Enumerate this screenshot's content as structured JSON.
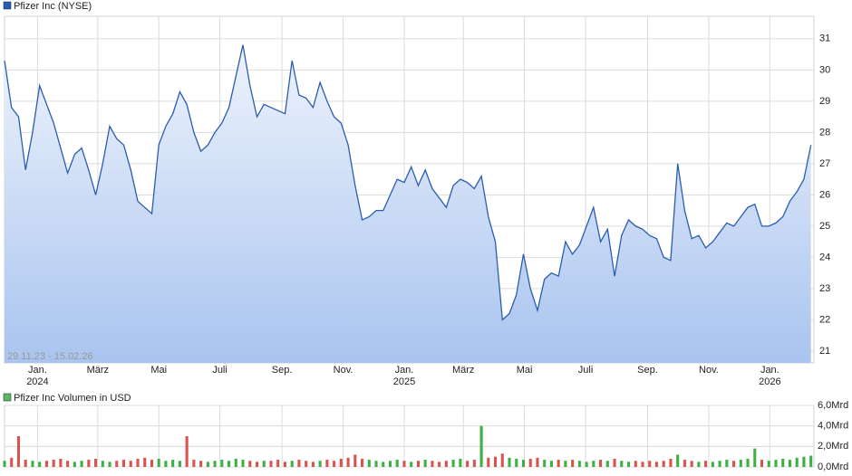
{
  "chart_data": [
    {
      "type": "line",
      "title": "Pfizer Inc (NYSE)",
      "range_label": "29.11.23 - 15.02.26",
      "xlim": [
        0,
        115.43
      ],
      "ylim": [
        20.62,
        31.72
      ],
      "yticks": [
        21,
        22,
        23,
        24,
        25,
        26,
        27,
        28,
        29,
        30,
        31
      ],
      "xticks": [
        {
          "value": 4.71,
          "label": "Jan.",
          "year": "2024"
        },
        {
          "value": 13.29,
          "label": "März"
        },
        {
          "value": 22.0,
          "label": "Mai"
        },
        {
          "value": 30.71,
          "label": "Juli"
        },
        {
          "value": 39.57,
          "label": "Sep."
        },
        {
          "value": 48.29,
          "label": "Nov."
        },
        {
          "value": 57.0,
          "label": "Jan.",
          "year": "2025"
        },
        {
          "value": 65.43,
          "label": "März"
        },
        {
          "value": 74.14,
          "label": "Mai"
        },
        {
          "value": 82.86,
          "label": "Juli"
        },
        {
          "value": 91.71,
          "label": "Sep."
        },
        {
          "value": 100.43,
          "label": "Nov."
        },
        {
          "value": 109.14,
          "label": "Jan.",
          "year": "2026"
        }
      ],
      "grid": true,
      "series": [
        {
          "name": "Pfizer Inc (NYSE)",
          "color": "#2a5db0",
          "values": [
            30.3,
            28.8,
            28.5,
            26.8,
            28.0,
            29.5,
            28.9,
            28.3,
            27.5,
            26.7,
            27.3,
            27.5,
            26.8,
            26.0,
            27.0,
            28.2,
            27.8,
            27.6,
            26.8,
            25.8,
            25.6,
            25.4,
            27.6,
            28.2,
            28.6,
            29.3,
            28.9,
            28.0,
            27.4,
            27.6,
            28.0,
            28.3,
            28.8,
            29.8,
            30.8,
            29.5,
            28.5,
            28.9,
            28.8,
            28.7,
            28.6,
            30.3,
            29.2,
            29.1,
            28.8,
            29.6,
            29.0,
            28.5,
            28.3,
            27.6,
            26.3,
            25.2,
            25.3,
            25.5,
            25.5,
            26.0,
            26.5,
            26.4,
            26.9,
            26.3,
            26.8,
            26.2,
            25.9,
            25.6,
            26.3,
            26.5,
            26.4,
            26.2,
            26.6,
            25.3,
            24.5,
            22.0,
            22.2,
            22.8,
            24.1,
            23.0,
            22.3,
            23.3,
            23.5,
            23.4,
            24.5,
            24.1,
            24.4,
            25.0,
            25.6,
            24.5,
            24.9,
            23.4,
            24.7,
            25.2,
            25.0,
            24.9,
            24.7,
            24.6,
            24.0,
            23.9,
            27.0,
            25.5,
            24.6,
            24.7,
            24.3,
            24.5,
            24.8,
            25.1,
            25.0,
            25.3,
            25.6,
            25.7,
            25.0,
            25.0,
            25.1,
            25.3,
            25.8,
            26.1,
            26.5,
            27.6
          ]
        }
      ]
    },
    {
      "type": "bar",
      "title": "Pfizer Inc Volumen in USD",
      "legend_color": "#5cb85c",
      "up_color": "#3cb043",
      "down_color": "#d9534f",
      "ylim": [
        0,
        6
      ],
      "yticks": [
        {
          "value": 0,
          "label": "0,0Mrd"
        },
        {
          "value": 2,
          "label": "2,0Mrd"
        },
        {
          "value": 4,
          "label": "4,0Mrd"
        },
        {
          "value": 6,
          "label": "6,0Mrd"
        }
      ],
      "grid": true,
      "values": [
        0.6,
        0.9,
        3.0,
        0.7,
        0.6,
        0.5,
        0.6,
        0.7,
        0.8,
        0.6,
        0.5,
        0.6,
        0.7,
        0.8,
        0.6,
        0.5,
        0.6,
        0.7,
        0.6,
        0.8,
        0.9,
        0.7,
        0.8,
        0.6,
        0.7,
        0.6,
        3.0,
        0.7,
        0.6,
        0.5,
        0.6,
        0.7,
        0.6,
        0.8,
        0.7,
        0.6,
        0.5,
        0.6,
        0.6,
        0.7,
        0.5,
        0.6,
        0.7,
        0.6,
        0.5,
        0.6,
        0.7,
        0.6,
        0.8,
        0.9,
        1.2,
        0.8,
        0.7,
        0.6,
        0.5,
        0.6,
        0.7,
        0.6,
        0.5,
        0.6,
        0.7,
        0.6,
        0.5,
        0.6,
        0.7,
        0.8,
        0.6,
        0.7,
        4.0,
        0.9,
        1.0,
        1.3,
        0.9,
        0.8,
        0.7,
        0.8,
        0.9,
        0.7,
        0.6,
        0.7,
        0.6,
        0.7,
        0.6,
        0.5,
        0.6,
        0.7,
        0.6,
        0.8,
        0.6,
        0.5,
        0.6,
        0.5,
        0.6,
        0.5,
        0.6,
        0.8,
        1.2,
        0.7,
        0.6,
        0.5,
        0.6,
        0.5,
        0.6,
        0.7,
        0.6,
        0.7,
        0.8,
        1.8,
        0.7,
        0.6,
        0.7,
        0.8,
        0.7,
        0.9,
        1.0,
        1.1
      ]
    }
  ]
}
